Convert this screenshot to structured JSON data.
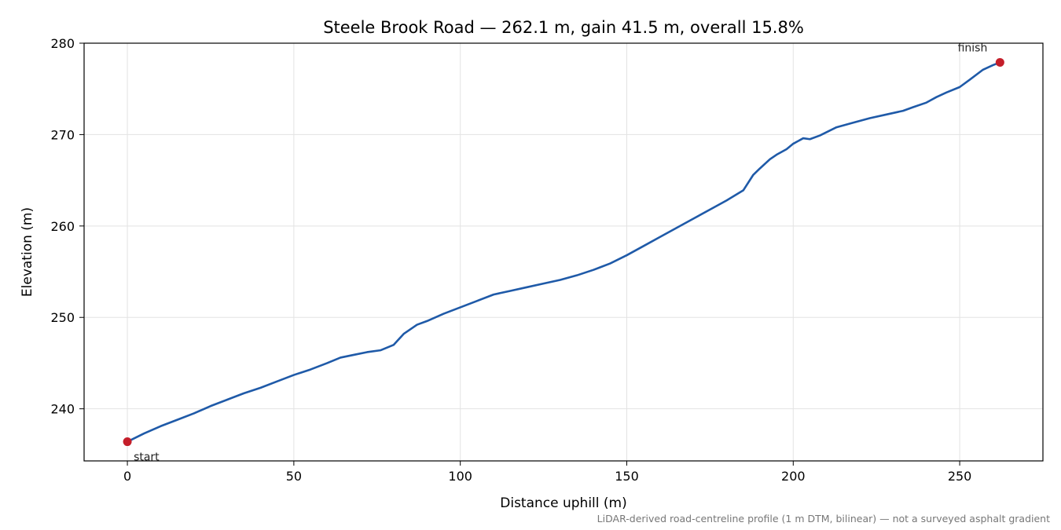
{
  "chart_data": {
    "type": "line",
    "title": "Steele Brook Road — 262.1 m, gain 41.5 m, overall 15.8%",
    "xlabel": "Distance uphill (m)",
    "ylabel": "Elevation (m)",
    "xlim": [
      -13,
      275
    ],
    "ylim": [
      234.3,
      280
    ],
    "xticks": [
      0,
      50,
      100,
      150,
      200,
      250
    ],
    "yticks": [
      240,
      250,
      260,
      270,
      280
    ],
    "grid": true,
    "series": [
      {
        "color": "#1f5aa8",
        "points": [
          [
            0,
            236.4
          ],
          [
            5,
            237.3
          ],
          [
            10,
            238.1
          ],
          [
            15,
            238.8
          ],
          [
            20,
            239.5
          ],
          [
            25,
            240.3
          ],
          [
            30,
            241.0
          ],
          [
            35,
            241.7
          ],
          [
            40,
            242.3
          ],
          [
            45,
            243.0
          ],
          [
            50,
            243.7
          ],
          [
            55,
            244.3
          ],
          [
            60,
            245.0
          ],
          [
            64,
            245.6
          ],
          [
            68,
            245.9
          ],
          [
            72,
            246.2
          ],
          [
            76,
            246.4
          ],
          [
            80,
            247.0
          ],
          [
            83,
            248.2
          ],
          [
            87,
            249.2
          ],
          [
            90,
            249.6
          ],
          [
            95,
            250.4
          ],
          [
            100,
            251.1
          ],
          [
            105,
            251.8
          ],
          [
            110,
            252.5
          ],
          [
            115,
            252.9
          ],
          [
            120,
            253.3
          ],
          [
            125,
            253.7
          ],
          [
            130,
            254.1
          ],
          [
            135,
            254.6
          ],
          [
            140,
            255.2
          ],
          [
            145,
            255.9
          ],
          [
            150,
            256.8
          ],
          [
            155,
            257.8
          ],
          [
            160,
            258.8
          ],
          [
            165,
            259.8
          ],
          [
            170,
            260.8
          ],
          [
            175,
            261.8
          ],
          [
            180,
            262.8
          ],
          [
            185,
            263.9
          ],
          [
            188,
            265.6
          ],
          [
            190,
            266.3
          ],
          [
            193,
            267.3
          ],
          [
            195,
            267.8
          ],
          [
            198,
            268.4
          ],
          [
            200,
            269.0
          ],
          [
            203,
            269.6
          ],
          [
            205,
            269.5
          ],
          [
            208,
            269.9
          ],
          [
            213,
            270.8
          ],
          [
            218,
            271.3
          ],
          [
            223,
            271.8
          ],
          [
            228,
            272.2
          ],
          [
            233,
            272.6
          ],
          [
            236,
            273.0
          ],
          [
            240,
            273.5
          ],
          [
            243,
            274.1
          ],
          [
            246,
            274.6
          ],
          [
            250,
            275.2
          ],
          [
            253,
            276.0
          ],
          [
            257,
            277.1
          ],
          [
            260,
            277.6
          ],
          [
            262.1,
            277.9
          ]
        ]
      }
    ],
    "markers": [
      {
        "x": 0,
        "y": 236.4,
        "label": "start",
        "color": "#c41e2a"
      },
      {
        "x": 262.1,
        "y": 277.9,
        "label": "finish",
        "color": "#c41e2a"
      }
    ],
    "footnote": "LiDAR-derived road-centreline profile (1 m DTM, bilinear) — not a surveyed asphalt gradient"
  }
}
